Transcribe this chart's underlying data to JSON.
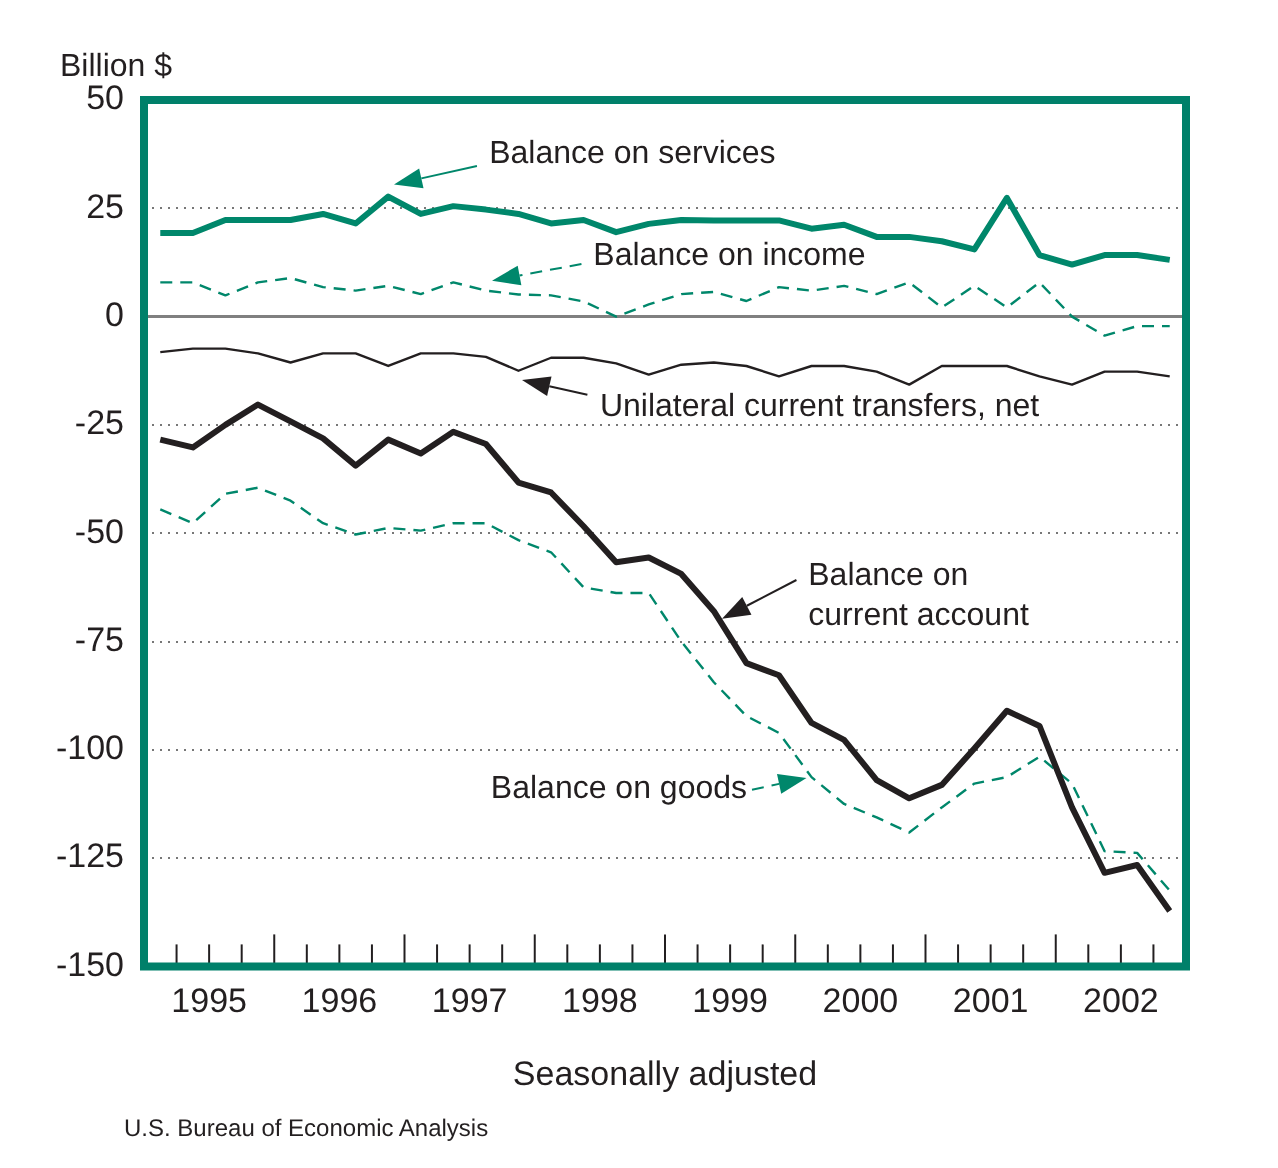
{
  "chart_data": {
    "type": "line",
    "ylabel": "Billion $",
    "xlabel": "Seasonally adjusted",
    "annotations": [
      "U.S. Bureau of Economic Analysis"
    ],
    "x": [
      1995.125,
      1995.375,
      1995.625,
      1995.875,
      1996.125,
      1996.375,
      1996.625,
      1996.875,
      1997.125,
      1997.375,
      1997.625,
      1997.875,
      1998.125,
      1998.375,
      1998.625,
      1998.875,
      1999.125,
      1999.375,
      1999.625,
      1999.875,
      2000.125,
      2000.375,
      2000.625,
      2000.875,
      2001.125,
      2001.375,
      2001.625,
      2001.875,
      2002.125,
      2002.375,
      2002.625,
      2002.875
    ],
    "series": [
      {
        "name": "Balance on services",
        "color": "#00876b",
        "line_style": "solid",
        "values": [
          19.3,
          19.3,
          22.3,
          22.3,
          22.3,
          23.7,
          21.5,
          27.7,
          23.7,
          25.5,
          24.7,
          23.7,
          21.5,
          22.3,
          19.5,
          21.4,
          22.3,
          22.2,
          22.2,
          22.2,
          20.3,
          21.2,
          18.4,
          18.4,
          17.4,
          15.5,
          27.4,
          14.2,
          12.0,
          14.2,
          14.2,
          13.1
        ]
      },
      {
        "name": "Balance on income",
        "color": "#00876b",
        "line_style": "dashed",
        "values": [
          7.9,
          7.9,
          4.9,
          7.9,
          8.9,
          6.8,
          6.0,
          7.1,
          5.2,
          7.9,
          6.0,
          5.1,
          4.9,
          3.5,
          0,
          2.8,
          5.2,
          5.7,
          3.6,
          6.8,
          6.0,
          7.1,
          5.2,
          7.9,
          2.1,
          7.1,
          2.1,
          7.9,
          0,
          -4.4,
          -2.2,
          -2.2
        ]
      },
      {
        "name": "Unilateral current transfers, net",
        "color": "#231f20",
        "line_style": "solid",
        "values": [
          -8.2,
          -7.4,
          -7.4,
          -8.5,
          -10.6,
          -8.5,
          -8.5,
          -11.4,
          -8.5,
          -8.5,
          -9.3,
          -12.5,
          -9.5,
          -9.5,
          -10.8,
          -13.4,
          -11.1,
          -10.6,
          -11.4,
          -13.8,
          -11.4,
          -11.4,
          -12.7,
          -15.7,
          -11.4,
          -11.4,
          -11.4,
          -13.8,
          -15.7,
          -12.7,
          -12.7,
          -13.8
        ]
      },
      {
        "name": "Balance on current account",
        "color": "#231f20",
        "line_style": "solid",
        "values": [
          -28.4,
          -30.2,
          -25,
          -20.3,
          -24.2,
          -28.1,
          -34.4,
          -28.4,
          -31.6,
          -26.6,
          -29.4,
          -38.3,
          -40.6,
          -48.4,
          -56.7,
          -55.6,
          -59.4,
          -68,
          -80,
          -82.8,
          -93.8,
          -97.7,
          -107,
          -111.2,
          -108.1,
          -99.7,
          -91,
          -94.5,
          -113.3,
          -128.4,
          -126.6,
          -137.2
        ]
      },
      {
        "name": "Balance on goods",
        "color": "#00876b",
        "line_style": "dashed",
        "values": [
          -44.5,
          -47.7,
          -40.9,
          -39.5,
          -42.5,
          -47.7,
          -50.3,
          -48.8,
          -49.4,
          -47.7,
          -47.7,
          -51.6,
          -54.4,
          -62.5,
          -63.8,
          -63.8,
          -75,
          -84.4,
          -92.2,
          -96.1,
          -106.3,
          -112.5,
          -115.6,
          -119.1,
          -113.3,
          -107.8,
          -106.3,
          -101.6,
          -107.8,
          -123.4,
          -123.8,
          -132.5
        ]
      }
    ],
    "xlim": [
      1995,
      2003
    ],
    "xticks": [
      {
        "value": 1995.25,
        "label": null
      },
      {
        "value": 1995.5,
        "label": "1995"
      },
      {
        "value": 1995.75,
        "label": null
      },
      {
        "value": 1996,
        "label": null
      },
      {
        "value": 1996.25,
        "label": null
      },
      {
        "value": 1996.5,
        "label": "1996"
      },
      {
        "value": 1996.75,
        "label": null
      },
      {
        "value": 1997,
        "label": null
      },
      {
        "value": 1997.25,
        "label": null
      },
      {
        "value": 1997.5,
        "label": "1997"
      },
      {
        "value": 1997.75,
        "label": null
      },
      {
        "value": 1998,
        "label": null
      },
      {
        "value": 1998.25,
        "label": null
      },
      {
        "value": 1998.5,
        "label": "1998"
      },
      {
        "value": 1998.75,
        "label": null
      },
      {
        "value": 1999,
        "label": null
      },
      {
        "value": 1999.25,
        "label": null
      },
      {
        "value": 1999.5,
        "label": "1999"
      },
      {
        "value": 1999.75,
        "label": null
      },
      {
        "value": 2000,
        "label": null
      },
      {
        "value": 2000.25,
        "label": null
      },
      {
        "value": 2000.5,
        "label": "2000"
      },
      {
        "value": 2000.75,
        "label": null
      },
      {
        "value": 2001,
        "label": null
      },
      {
        "value": 2001.25,
        "label": null
      },
      {
        "value": 2001.5,
        "label": "2001"
      },
      {
        "value": 2001.75,
        "label": null
      },
      {
        "value": 2002,
        "label": null
      },
      {
        "value": 2002.25,
        "label": null
      },
      {
        "value": 2002.5,
        "label": "2002"
      },
      {
        "value": 2002.75,
        "label": null
      }
    ],
    "ylim": [
      -150,
      50
    ],
    "yticks": [
      -150,
      -125,
      -100,
      -75,
      -50,
      -25,
      0,
      25,
      50
    ],
    "ref_lines": [
      {
        "axis": "y",
        "value": 0,
        "color": "#808080"
      }
    ],
    "grid": "y",
    "legend": "top",
    "marker": "none"
  }
}
